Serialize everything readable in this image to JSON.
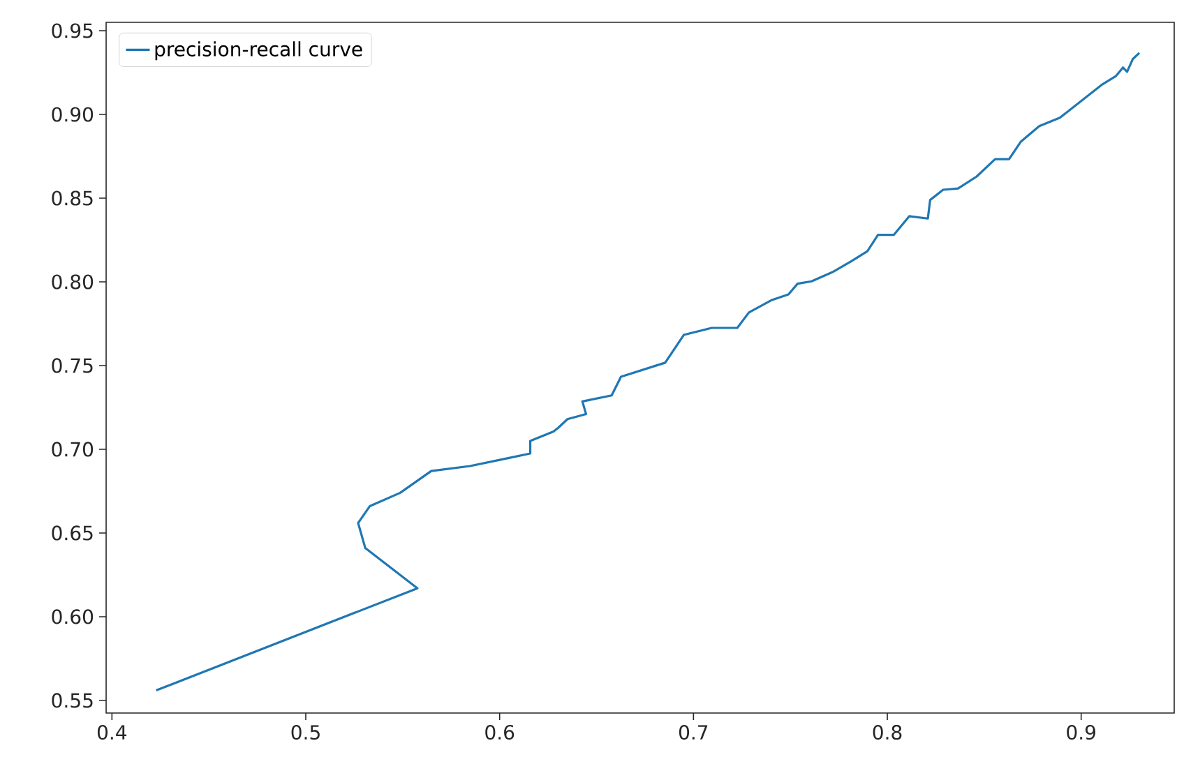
{
  "chart_data": {
    "type": "line",
    "series": [
      {
        "name": "precision-recall curve",
        "color": "#1f77b4",
        "x": [
          0.4228,
          0.5576,
          0.5307,
          0.527,
          0.533,
          0.5487,
          0.5647,
          0.5847,
          0.6014,
          0.6158,
          0.6158,
          0.6278,
          0.6302,
          0.635,
          0.6446,
          0.6427,
          0.6578,
          0.6626,
          0.6854,
          0.695,
          0.7094,
          0.7226,
          0.7286,
          0.7405,
          0.749,
          0.7537,
          0.7609,
          0.7717,
          0.7813,
          0.7897,
          0.7952,
          0.8034,
          0.8113,
          0.8209,
          0.8221,
          0.8288,
          0.8365,
          0.846,
          0.8556,
          0.8628,
          0.8688,
          0.8784,
          0.889,
          0.911,
          0.918,
          0.9216,
          0.9237,
          0.9266,
          0.93
        ],
        "values": [
          0.556,
          0.617,
          0.641,
          0.656,
          0.666,
          0.674,
          0.687,
          0.69,
          0.694,
          0.6975,
          0.705,
          0.7106,
          0.7128,
          0.718,
          0.721,
          0.7286,
          0.7322,
          0.7433,
          0.7517,
          0.7683,
          0.7725,
          0.7725,
          0.7817,
          0.7892,
          0.7925,
          0.7989,
          0.8003,
          0.8058,
          0.8122,
          0.8183,
          0.8281,
          0.8281,
          0.8392,
          0.8378,
          0.8489,
          0.855,
          0.8558,
          0.8628,
          0.8733,
          0.8733,
          0.8836,
          0.893,
          0.898,
          0.918,
          0.923,
          0.928,
          0.9255,
          0.933,
          0.9367
        ]
      }
    ],
    "xlim": [
      0.397,
      0.948
    ],
    "ylim": [
      0.5425,
      0.955
    ],
    "xticks": [
      0.4,
      0.5,
      0.6,
      0.7,
      0.8,
      0.9
    ],
    "yticks": [
      0.55,
      {
        "value": 0.6,
        "label": "0.60"
      },
      0.65,
      {
        "value": 0.7,
        "label": "0.70"
      },
      0.75,
      {
        "value": 0.8,
        "label": "0.80"
      },
      0.85,
      {
        "value": 0.9,
        "label": "0.90"
      },
      0.95
    ],
    "legend": "top left"
  }
}
